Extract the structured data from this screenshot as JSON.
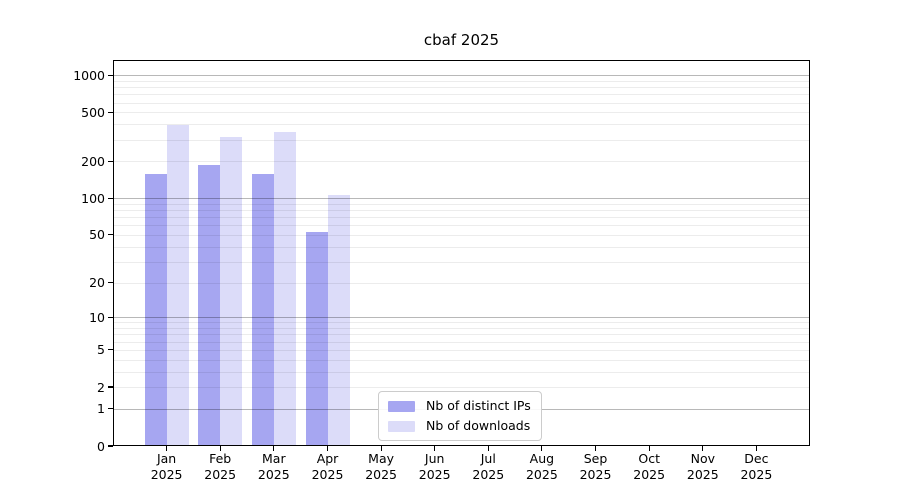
{
  "chart_data": {
    "type": "bar",
    "title": "cbaf 2025",
    "year": "2025",
    "categories": [
      "Jan",
      "Feb",
      "Mar",
      "Apr",
      "May",
      "Jun",
      "Jul",
      "Aug",
      "Sep",
      "Oct",
      "Nov",
      "Dec"
    ],
    "series": [
      {
        "name": "Nb of distinct IPs",
        "color": "#a6a6f1",
        "values": [
          158,
          188,
          158,
          53,
          null,
          null,
          null,
          null,
          null,
          null,
          null,
          null
        ]
      },
      {
        "name": "Nb of downloads",
        "color": "#dcdcf9",
        "values": [
          398,
          316,
          347,
          107,
          null,
          null,
          null,
          null,
          null,
          null,
          null,
          null
        ]
      }
    ],
    "yscale": "log10(1+x)",
    "ytick_values": [
      0,
      1,
      2,
      5,
      10,
      20,
      50,
      100,
      200,
      500,
      1000
    ],
    "ylim": [
      0,
      1325
    ],
    "xlabel": "",
    "ylabel": "",
    "grid": "horizontal; major lines at 1,10,100,1000; minor lines at 2-9 multiples; drawn over bars",
    "legend_position": "inside, lower middle",
    "axis_color": "#000000",
    "background": "#ffffff"
  }
}
